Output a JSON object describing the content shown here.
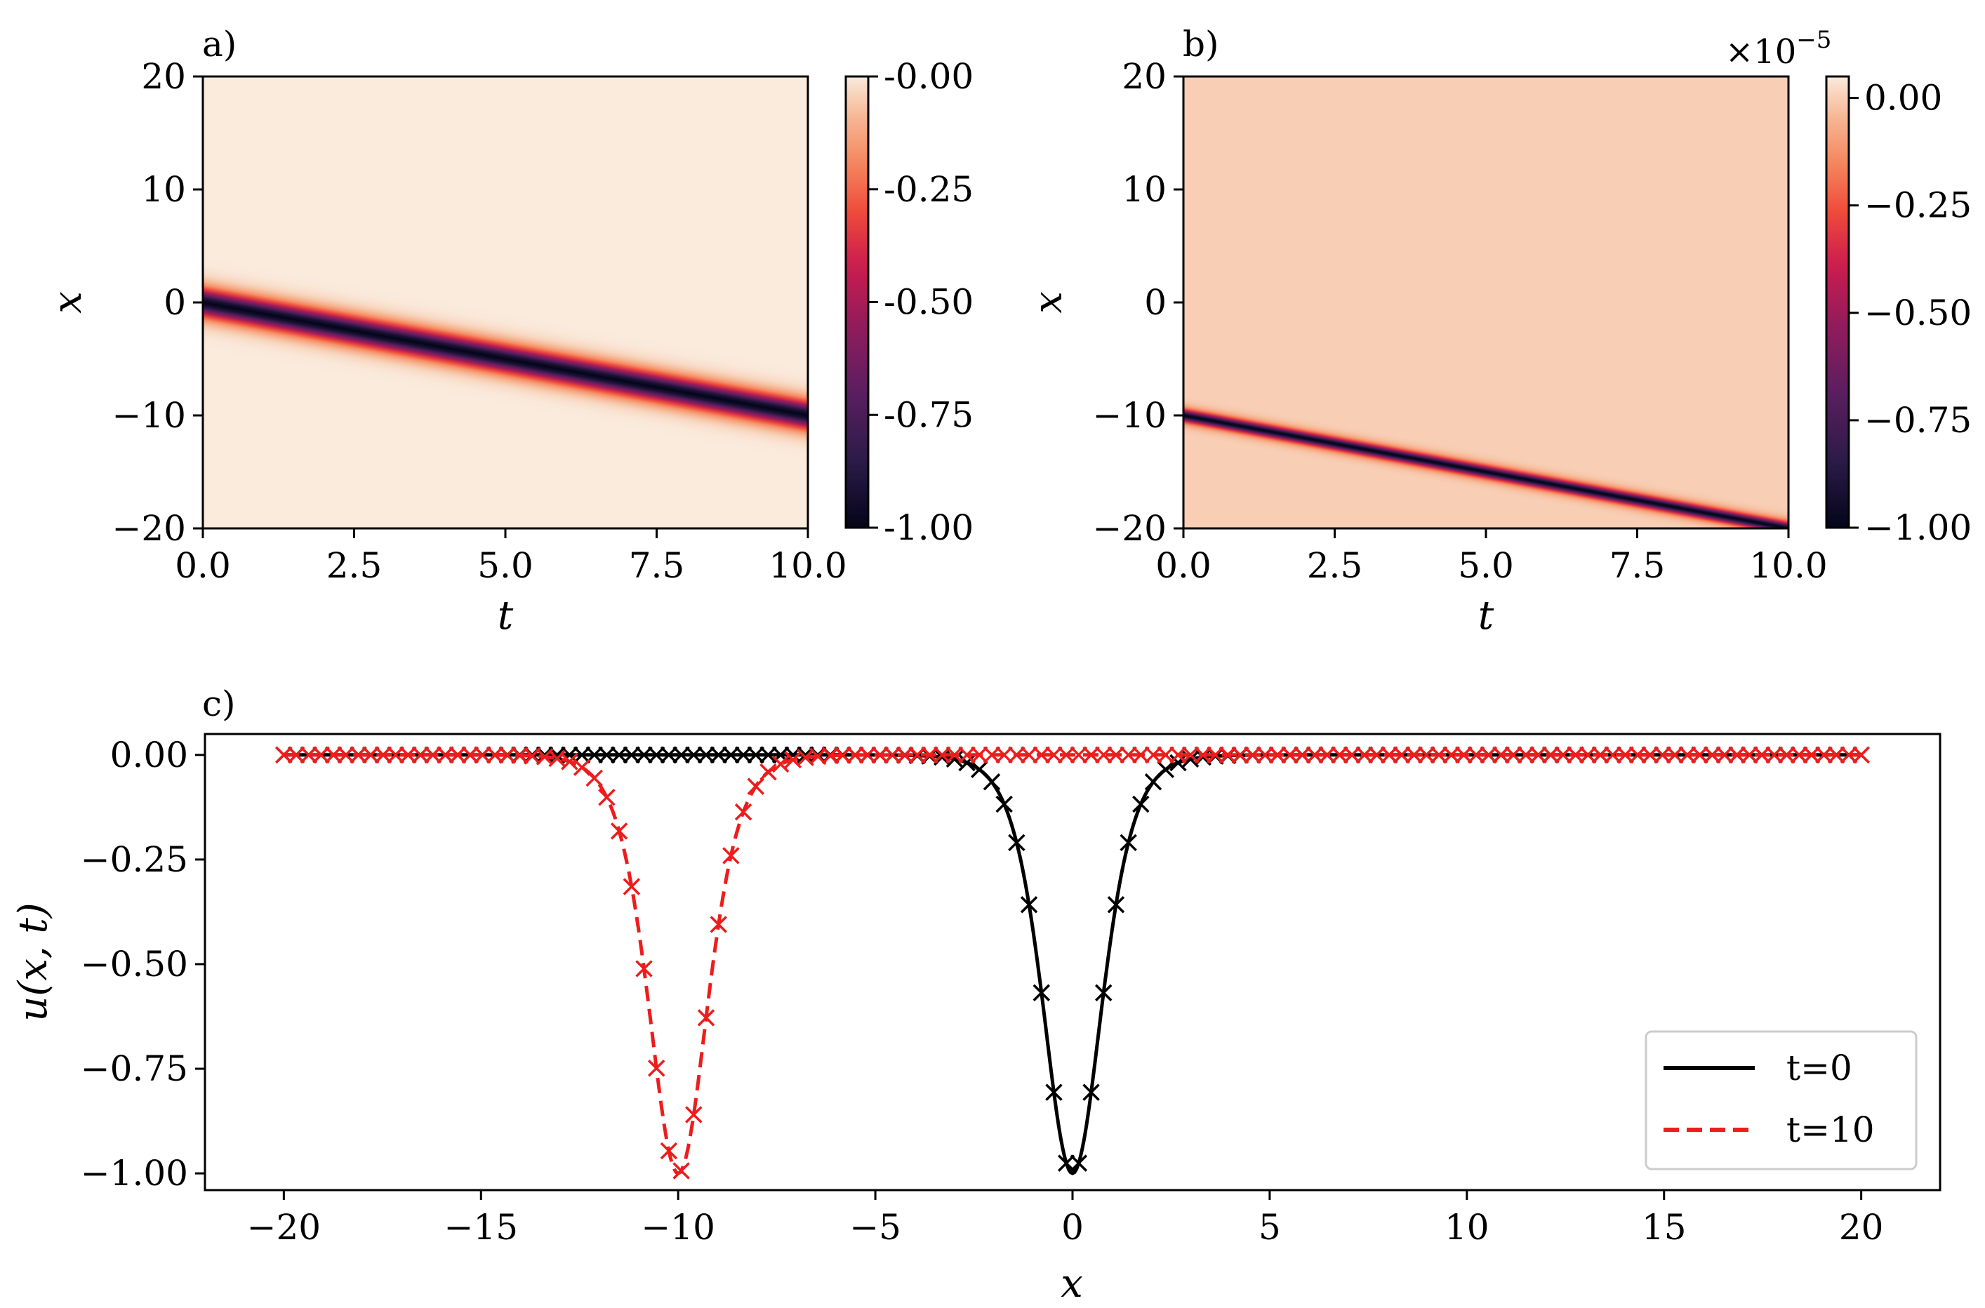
{
  "chart_data": [
    {
      "id": "a",
      "type": "heatmap",
      "panel_label": "a)",
      "xlabel": "t",
      "ylabel": "x",
      "xlim": [
        0,
        10
      ],
      "ylim": [
        -20,
        20
      ],
      "xticks": [
        0,
        2.5,
        5,
        7.5,
        10
      ],
      "xtick_labels": [
        "0.0",
        "2.5",
        "5.0",
        "7.5",
        "10.0"
      ],
      "yticks": [
        20,
        10,
        0,
        -10,
        -20
      ],
      "ytick_labels": [
        "20",
        "10",
        "0",
        "−10",
        "−20"
      ],
      "soliton": {
        "x_at_t0": 0,
        "x_at_t10": -10,
        "amplitude": -1.0,
        "width": 1.0
      },
      "colorbar": {
        "range": [
          -1.0,
          0.0
        ],
        "ticks": [
          0.0,
          -0.25,
          -0.5,
          -0.75,
          -1.0
        ],
        "tick_labels": [
          "-0.00",
          "-0.25",
          "-0.50",
          "-0.75",
          "-1.00"
        ],
        "multiplier": ""
      }
    },
    {
      "id": "b",
      "type": "heatmap",
      "panel_label": "b)",
      "xlabel": "t",
      "ylabel": "x",
      "xlim": [
        0,
        10
      ],
      "ylim": [
        -20,
        20
      ],
      "xticks": [
        0,
        2.5,
        5,
        7.5,
        10
      ],
      "xtick_labels": [
        "0.0",
        "2.5",
        "5.0",
        "7.5",
        "10.0"
      ],
      "yticks": [
        20,
        10,
        0,
        -10,
        -20
      ],
      "ytick_labels": [
        "20",
        "10",
        "0",
        "−10",
        "−20"
      ],
      "soliton": {
        "x_at_t0": -10,
        "x_at_t10": -20,
        "amplitude": -1.0,
        "width": 0.45
      },
      "colorbar": {
        "range": [
          -1.0,
          0.05
        ],
        "ticks": [
          0.0,
          -0.25,
          -0.5,
          -0.75,
          -1.0
        ],
        "tick_labels": [
          "0.00",
          "−0.25",
          "−0.50",
          "−0.75",
          "−1.00"
        ],
        "multiplier": "×10",
        "multiplier_exp": "−5"
      }
    },
    {
      "id": "c",
      "type": "line",
      "panel_label": "c)",
      "xlabel": "x",
      "ylabel": "u(x, t)",
      "xlim": [
        -22,
        22
      ],
      "ylim": [
        -1.04,
        0.05
      ],
      "xticks": [
        -20,
        -15,
        -10,
        -5,
        0,
        5,
        10,
        15,
        20
      ],
      "xtick_labels": [
        "−20",
        "−15",
        "−10",
        "−5",
        "0",
        "5",
        "10",
        "15",
        "20"
      ],
      "yticks": [
        0,
        -0.25,
        -0.5,
        -0.75,
        -1.0
      ],
      "ytick_labels": [
        "0.00",
        "−0.25",
        "−0.50",
        "−0.75",
        "−1.00"
      ],
      "series": [
        {
          "name": "t=0",
          "center": 0,
          "amplitude": -1.0,
          "color": "#000000",
          "dash": "solid",
          "marker": "x"
        },
        {
          "name": "t=10",
          "center": -10,
          "amplitude": -1.0,
          "color": "#ee1c1c",
          "dash": "dashed",
          "marker": "x"
        }
      ],
      "marker_x_range": [
        -20,
        20
      ],
      "marker_count": 128,
      "legend": {
        "location": "lower-right",
        "entries": [
          "t=0",
          "t=10"
        ]
      }
    }
  ]
}
